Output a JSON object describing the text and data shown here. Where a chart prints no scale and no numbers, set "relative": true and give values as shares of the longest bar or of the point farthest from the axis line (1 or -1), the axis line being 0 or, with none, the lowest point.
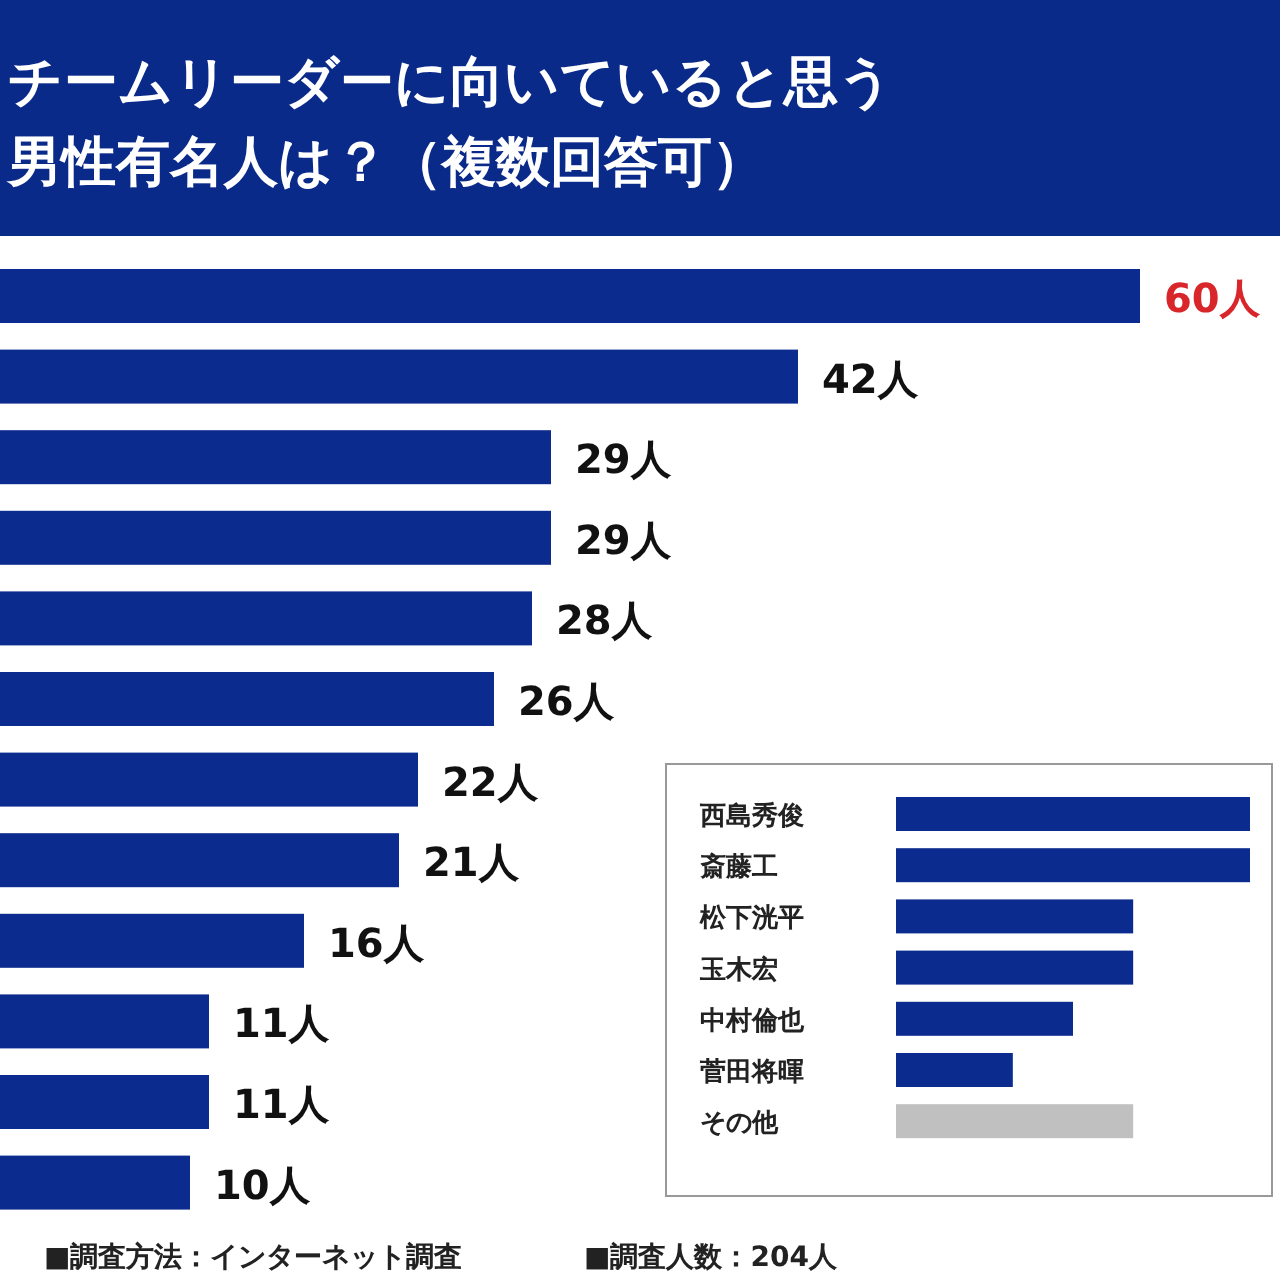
{
  "chart_data": [
    {
      "type": "bar",
      "orientation": "horizontal",
      "title": "チームリーダーに向いていると思う男性有名人は？（複数回答可）",
      "categories": [
        null,
        null,
        null,
        null,
        null,
        null,
        null,
        null,
        null,
        null,
        null,
        null
      ],
      "values": [
        60,
        42,
        29,
        29,
        28,
        26,
        22,
        21,
        16,
        11,
        11,
        10
      ],
      "value_labels": [
        "60人",
        "42人",
        "29人",
        "29人",
        "28人",
        "26人",
        "22人",
        "21人",
        "16人",
        "11人",
        "11人",
        "10人"
      ],
      "color": "#0c2b8e",
      "annotations": [
        "■調査方法：インターネット調査",
        "■調査人数：204人"
      ]
    },
    {
      "type": "bar",
      "orientation": "horizontal",
      "relative": true,
      "categories": [
        "西島秀俊",
        "斎藤工",
        "松下洸平",
        "玉木宏",
        "中村倫也",
        "菅田将暉",
        "その他"
      ],
      "values": [
        1,
        1,
        0.67,
        0.67,
        0.5,
        0.33,
        0.67
      ],
      "colors": [
        "#0c2b8e",
        "#0c2b8e",
        "#0c2b8e",
        "#0c2b8e",
        "#0c2b8e",
        "#0c2b8e",
        "#c0c0c0"
      ]
    }
  ]
}
